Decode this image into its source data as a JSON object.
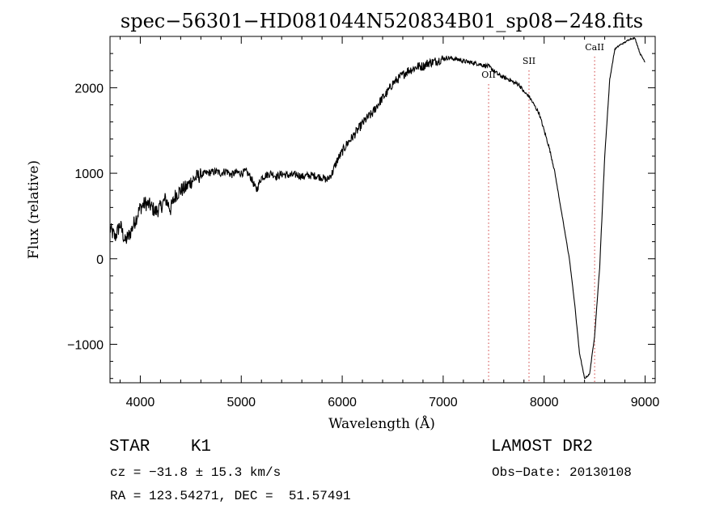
{
  "chart_data": {
    "type": "line",
    "title": "spec−56301−HD081044N520834B01_sp08−248.fits",
    "xlabel": "Wavelength (Å)",
    "ylabel": "Flux (relative)",
    "xlim": [
      3700,
      9100
    ],
    "ylim": [
      -1450,
      2600
    ],
    "x_ticks": [
      4000,
      5000,
      6000,
      7000,
      8000,
      9000
    ],
    "y_ticks": [
      -1000,
      0,
      1000,
      2000
    ],
    "line_color": "#000000",
    "series": [
      {
        "x": [
          3700,
          3750,
          3800,
          3850,
          3900,
          3950,
          4000,
          4050,
          4100,
          4150,
          4200,
          4250,
          4300,
          4350,
          4400,
          4450,
          4500,
          4550,
          4600,
          4650,
          4700,
          4750,
          4800,
          4850,
          4900,
          4950,
          5000,
          5050,
          5100,
          5150,
          5200,
          5250,
          5300,
          5350,
          5400,
          5450,
          5500,
          5550,
          5600,
          5650,
          5700,
          5750,
          5800,
          5850,
          5900,
          5950,
          6000,
          6050,
          6100,
          6150,
          6200,
          6250,
          6300,
          6350,
          6400,
          6450,
          6500,
          6550,
          6600,
          6650,
          6700,
          6750,
          6800,
          6850,
          6900,
          6950,
          7000,
          7050,
          7100,
          7150,
          7200,
          7250,
          7300,
          7350,
          7400,
          7450,
          7500,
          7550,
          7600,
          7650,
          7700,
          7750,
          7800,
          7850,
          7900,
          7950,
          8000,
          8050,
          8100,
          8150,
          8200,
          8250,
          8300,
          8350,
          8400,
          8450,
          8500,
          8550,
          8600,
          8650,
          8700,
          8750,
          8800,
          8850,
          8900,
          8950,
          9000
        ],
        "y": [
          350,
          250,
          400,
          200,
          300,
          450,
          600,
          650,
          620,
          550,
          600,
          700,
          580,
          750,
          800,
          830,
          900,
          950,
          980,
          1000,
          1010,
          1020,
          1000,
          1030,
          980,
          1010,
          1000,
          1020,
          940,
          800,
          950,
          980,
          1000,
          960,
          990,
          980,
          975,
          985,
          960,
          970,
          975,
          965,
          950,
          920,
          1000,
          1150,
          1250,
          1350,
          1420,
          1500,
          1580,
          1650,
          1700,
          1800,
          1880,
          1950,
          2050,
          2100,
          2150,
          2200,
          2220,
          2250,
          2250,
          2290,
          2300,
          2320,
          2340,
          2350,
          2340,
          2330,
          2310,
          2300,
          2290,
          2280,
          2260,
          2250,
          2200,
          2150,
          2120,
          2100,
          2060,
          2040,
          1950,
          1900,
          1800,
          1700,
          1500,
          1300,
          1050,
          700,
          350,
          0,
          -500,
          -1100,
          -1400,
          -1350,
          -900,
          -100,
          1200,
          2100,
          2450,
          2500,
          2530,
          2570,
          2580,
          2400,
          2300
        ]
      }
    ],
    "annotations": [
      {
        "label": "OII",
        "x": 7450
      },
      {
        "label": "SII",
        "x": 7850
      },
      {
        "label": "CaII",
        "x": 8500
      }
    ],
    "annotation_color": "#d04040"
  },
  "footer": {
    "object": "STAR    K1",
    "cz": "cz = −31.8 ± 15.3 km/s",
    "coords": "RA = 123.54271, DEC =  51.57491",
    "survey": "LAMOST DR2",
    "obs_date": "Obs−Date: 20130108"
  }
}
